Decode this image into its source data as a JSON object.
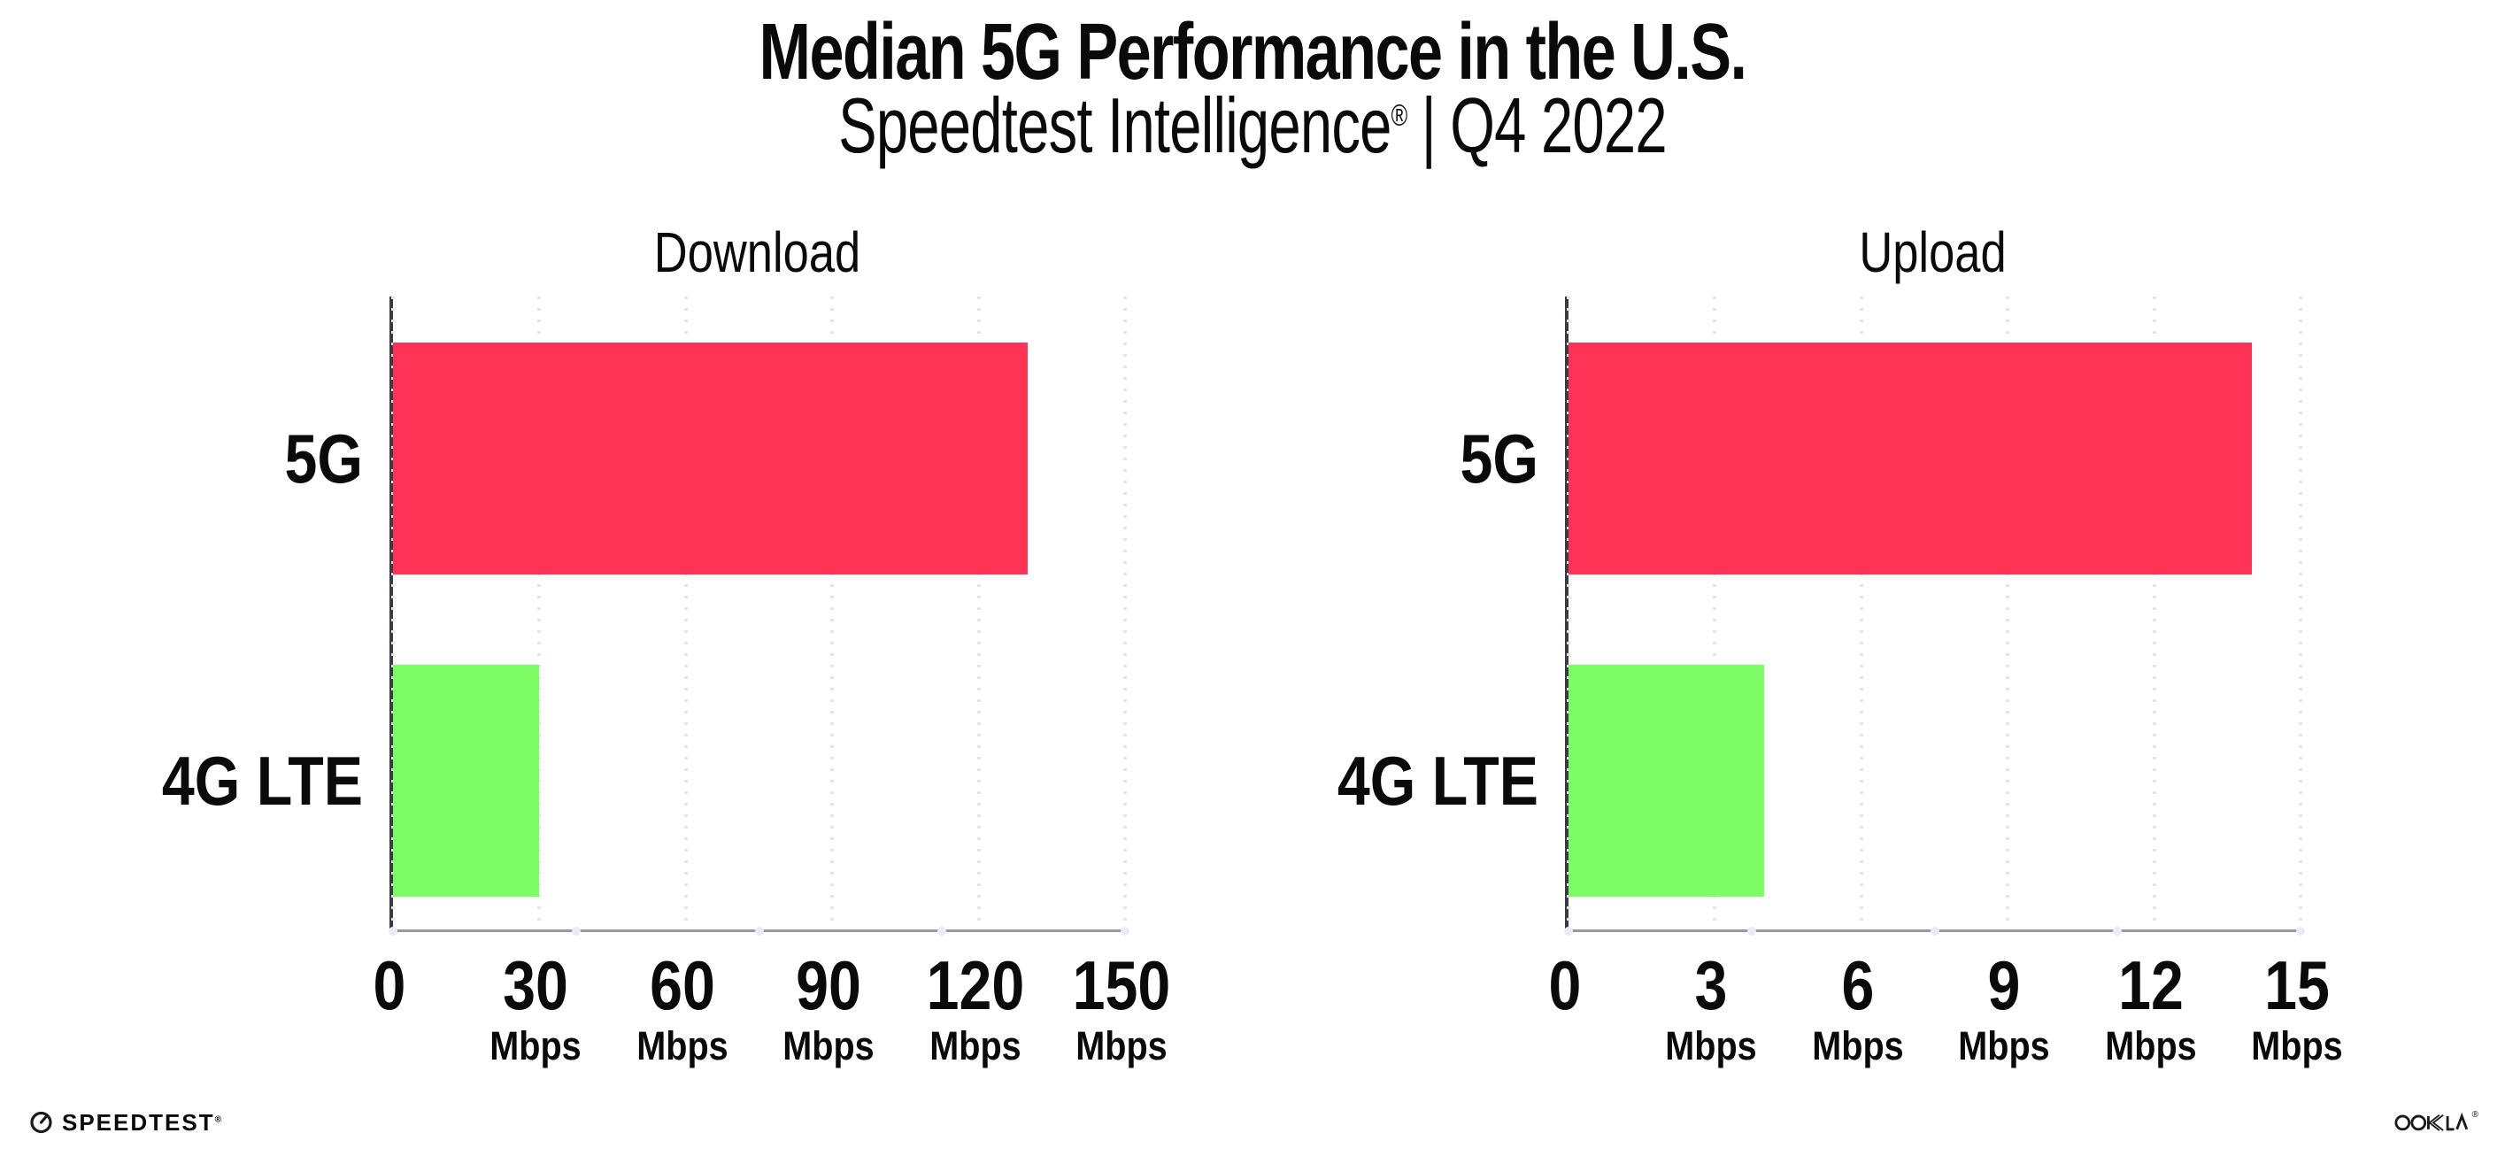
{
  "page": {
    "title": "Median 5G Performance in the U.S.",
    "subtitle": {
      "brand": "Speedtest Intelligence",
      "registered_mark": "®",
      "separator": "|",
      "period": "Q4 2022"
    }
  },
  "chart_data": [
    {
      "type": "bar",
      "orientation": "horizontal",
      "title": "Download",
      "categories": [
        "5G",
        "4G LTE"
      ],
      "values": [
        130,
        30
      ],
      "unit": "Mbps",
      "xlabel": "",
      "ylabel": "",
      "xlim": [
        0,
        150
      ],
      "xticks": [
        0,
        30,
        60,
        90,
        120,
        150
      ],
      "bar_colors": [
        "#FF3356",
        "#7DFD66"
      ],
      "grid": "vertical-dotted",
      "legend": "none"
    },
    {
      "type": "bar",
      "orientation": "horizontal",
      "title": "Upload",
      "categories": [
        "5G",
        "4G LTE"
      ],
      "values": [
        14,
        4
      ],
      "unit": "Mbps",
      "xlabel": "",
      "ylabel": "",
      "xlim": [
        0,
        15
      ],
      "xticks": [
        0,
        3,
        6,
        9,
        12,
        15
      ],
      "bar_colors": [
        "#FF3356",
        "#7DFD66"
      ],
      "grid": "vertical-dotted",
      "legend": "none"
    }
  ],
  "footer": {
    "speedtest_wordmark": "SPEEDTEST",
    "speedtest_mark": "®",
    "ookla_wordmark": "OOKLA",
    "ookla_mark": "®"
  },
  "colors": {
    "bar_5g": "#FF3356",
    "bar_4g_lte": "#7DFD66",
    "x_axis_line": "#98989D",
    "y_axis_line": "#3A3A42",
    "gridline_dots": "#E4E4EE",
    "axis_marker_dots": "#E9ECF4",
    "text": "#0A0A0A",
    "background": "#FFFFFF"
  }
}
